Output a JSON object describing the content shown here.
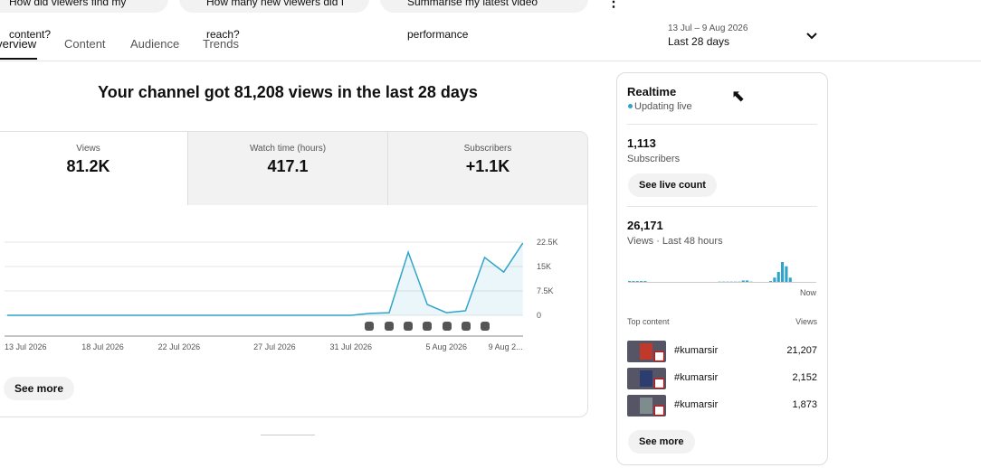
{
  "chips": [
    "How did viewers find my content?",
    "How many new viewers did I reach?",
    "Summarise my latest video performance"
  ],
  "tabs": [
    "Overview",
    "Content",
    "Audience",
    "Trends"
  ],
  "date_range": {
    "range": "13 Jul – 9 Aug 2026",
    "label": "Last 28 days"
  },
  "headline": "Your channel got 81,208 views in the last 28 days",
  "metrics": [
    {
      "label": "Views",
      "value": "81.2K"
    },
    {
      "label": "Watch time (hours)",
      "value": "417.1"
    },
    {
      "label": "Subscribers",
      "value": "+1.1K"
    }
  ],
  "chart_data": {
    "type": "line",
    "categories": [
      "13 Jul 2026",
      null,
      null,
      null,
      null,
      "18 Jul 2026",
      null,
      null,
      null,
      "22 Jul 2026",
      null,
      null,
      null,
      null,
      "27 Jul 2026",
      null,
      null,
      null,
      "31 Jul 2026",
      null,
      null,
      null,
      null,
      "5 Aug 2026",
      null,
      null,
      null,
      "9 Aug 2..."
    ],
    "series": [
      {
        "name": "Views",
        "color": "#2fa4c8",
        "values": [
          0,
          0,
          0,
          0,
          0,
          0,
          0,
          0,
          0,
          0,
          0,
          0,
          0,
          0,
          0,
          0,
          0,
          0,
          0,
          600,
          800,
          19400,
          3300,
          800,
          1400,
          17800,
          13300,
          22200
        ]
      }
    ],
    "ylim": [
      0,
      22500
    ],
    "yticks": [
      0,
      {
        "value": 7500,
        "label": "7.5K"
      },
      {
        "value": 15000,
        "label": "15K"
      },
      {
        "value": 22500,
        "label": "22.5K"
      }
    ],
    "grid": true
  },
  "see_more": "See more",
  "realtime": {
    "title": "Realtime",
    "status": "Updating live",
    "subscribers": "1,113",
    "subscribers_label": "Subscribers",
    "live_button": "See live count",
    "views": "26,171",
    "views_label": "Views · Last 48 hours",
    "chart": {
      "type": "bar",
      "color": "#2fa4c8",
      "values": [
        300,
        300,
        300,
        300,
        300,
        0,
        0,
        0,
        0,
        0,
        0,
        0,
        0,
        0,
        0,
        0,
        0,
        0,
        0,
        0,
        0,
        0,
        0,
        100,
        100,
        100,
        100,
        100,
        100,
        500,
        500,
        100,
        0,
        0,
        0,
        0,
        300,
        1500,
        3500,
        7000,
        5500,
        1500,
        0,
        0,
        0,
        0,
        0,
        0
      ]
    },
    "now": "Now",
    "top_content_label": "Top content",
    "views_header": "Views",
    "rows": [
      {
        "title": "#kumarsir",
        "views": "21,207"
      },
      {
        "title": "#kumarsir",
        "views": "2,152"
      },
      {
        "title": "#kumarsir",
        "views": "1,873"
      }
    ],
    "see_more": "See more"
  }
}
